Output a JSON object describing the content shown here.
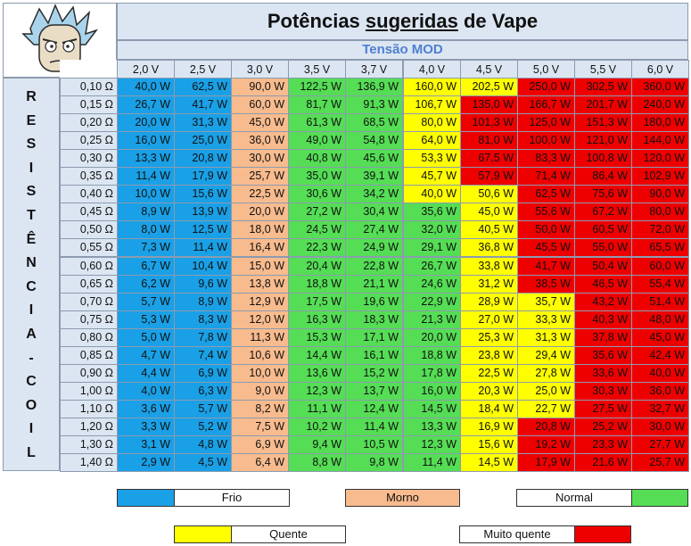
{
  "title": {
    "pre": "Potências ",
    "underlined": "sugeridas",
    "post": " de Vape"
  },
  "subtitle": "Tensão MOD",
  "side_label": [
    "R",
    "E",
    "S",
    "I",
    "S",
    "T",
    "Ê",
    "N",
    "C",
    "I",
    "A",
    "-",
    "C",
    "O",
    "I",
    "L"
  ],
  "colors": {
    "frio": "#1aa0e6",
    "morno": "#f8bb8e",
    "normal": "#55dd55",
    "quente": "#ffff00",
    "muito_quente": "#ee0000",
    "header": "#dce6f2"
  },
  "chart_data": {
    "type": "table",
    "title": "Potências sugeridas de Vape",
    "column_header": "Tensão MOD",
    "row_header": "RESISTÊNCIA-COIL",
    "columns": [
      "2,0 V",
      "2,5 V",
      "3,0 V",
      "3,5 V",
      "3,7 V",
      "4,0 V",
      "4,5 V",
      "5,0 V",
      "5,5 V",
      "6,0 V"
    ],
    "rows": [
      {
        "r": "0,10 Ω",
        "v": [
          "40,0 W",
          "62,5 W",
          "90,0 W",
          "122,5 W",
          "136,9 W",
          "160,0 W",
          "202,5 W",
          "250,0 W",
          "302,5 W",
          "360,0 W"
        ],
        "c": [
          "f",
          "f",
          "m",
          "n",
          "n",
          "q",
          "q",
          "h",
          "h",
          "h"
        ]
      },
      {
        "r": "0,15 Ω",
        "v": [
          "26,7 W",
          "41,7 W",
          "60,0 W",
          "81,7 W",
          "91,3 W",
          "106,7 W",
          "135,0 W",
          "166,7 W",
          "201,7 W",
          "240,0 W"
        ],
        "c": [
          "f",
          "f",
          "m",
          "n",
          "n",
          "q",
          "h",
          "h",
          "h",
          "h"
        ]
      },
      {
        "r": "0,20 Ω",
        "v": [
          "20,0 W",
          "31,3 W",
          "45,0 W",
          "61,3 W",
          "68,5 W",
          "80,0 W",
          "101,3 W",
          "125,0 W",
          "151,3 W",
          "180,0 W"
        ],
        "c": [
          "f",
          "f",
          "m",
          "n",
          "n",
          "q",
          "h",
          "h",
          "h",
          "h"
        ]
      },
      {
        "r": "0,25 Ω",
        "v": [
          "16,0 W",
          "25,0 W",
          "36,0 W",
          "49,0 W",
          "54,8 W",
          "64,0 W",
          "81,0 W",
          "100,0 W",
          "121,0 W",
          "144,0 W"
        ],
        "c": [
          "f",
          "f",
          "m",
          "n",
          "n",
          "q",
          "h",
          "h",
          "h",
          "h"
        ]
      },
      {
        "r": "0,30 Ω",
        "v": [
          "13,3 W",
          "20,8 W",
          "30,0 W",
          "40,8 W",
          "45,6 W",
          "53,3 W",
          "67,5 W",
          "83,3 W",
          "100,8 W",
          "120,0 W"
        ],
        "c": [
          "f",
          "f",
          "m",
          "n",
          "n",
          "q",
          "h",
          "h",
          "h",
          "h"
        ]
      },
      {
        "r": "0,35 Ω",
        "v": [
          "11,4 W",
          "17,9 W",
          "25,7 W",
          "35,0 W",
          "39,1 W",
          "45,7 W",
          "57,9 W",
          "71,4 W",
          "86,4 W",
          "102,9 W"
        ],
        "c": [
          "f",
          "f",
          "m",
          "n",
          "n",
          "q",
          "h",
          "h",
          "h",
          "h"
        ]
      },
      {
        "r": "0,40 Ω",
        "v": [
          "10,0 W",
          "15,6 W",
          "22,5 W",
          "30,6 W",
          "34,2 W",
          "40,0 W",
          "50,6 W",
          "62,5 W",
          "75,6 W",
          "90,0 W"
        ],
        "c": [
          "f",
          "f",
          "m",
          "n",
          "n",
          "q",
          "q",
          "h",
          "h",
          "h"
        ]
      },
      {
        "r": "0,45 Ω",
        "v": [
          "8,9 W",
          "13,9 W",
          "20,0 W",
          "27,2 W",
          "30,4 W",
          "35,6 W",
          "45,0 W",
          "55,6 W",
          "67,2 W",
          "80,0 W"
        ],
        "c": [
          "f",
          "f",
          "m",
          "n",
          "n",
          "n",
          "q",
          "h",
          "h",
          "h"
        ]
      },
      {
        "r": "0,50 Ω",
        "v": [
          "8,0 W",
          "12,5 W",
          "18,0 W",
          "24,5 W",
          "27,4 W",
          "32,0 W",
          "40,5 W",
          "50,0 W",
          "60,5 W",
          "72,0 W"
        ],
        "c": [
          "f",
          "f",
          "m",
          "n",
          "n",
          "n",
          "q",
          "h",
          "h",
          "h"
        ]
      },
      {
        "r": "0,55 Ω",
        "v": [
          "7,3 W",
          "11,4 W",
          "16,4 W",
          "22,3 W",
          "24,9 W",
          "29,1 W",
          "36,8 W",
          "45,5 W",
          "55,0 W",
          "65,5 W"
        ],
        "c": [
          "f",
          "f",
          "m",
          "n",
          "n",
          "n",
          "q",
          "h",
          "h",
          "h"
        ]
      },
      {
        "r": "0,60 Ω",
        "v": [
          "6,7 W",
          "10,4 W",
          "15,0 W",
          "20,4 W",
          "22,8 W",
          "26,7 W",
          "33,8 W",
          "41,7 W",
          "50,4 W",
          "60,0 W"
        ],
        "c": [
          "f",
          "f",
          "m",
          "n",
          "n",
          "n",
          "q",
          "h",
          "h",
          "h"
        ]
      },
      {
        "r": "0,65 Ω",
        "v": [
          "6,2 W",
          "9,6 W",
          "13,8 W",
          "18,8 W",
          "21,1 W",
          "24,6 W",
          "31,2 W",
          "38,5 W",
          "46,5 W",
          "55,4 W"
        ],
        "c": [
          "f",
          "f",
          "m",
          "n",
          "n",
          "n",
          "q",
          "h",
          "h",
          "h"
        ]
      },
      {
        "r": "0,70 Ω",
        "v": [
          "5,7 W",
          "8,9 W",
          "12,9 W",
          "17,5 W",
          "19,6 W",
          "22,9 W",
          "28,9 W",
          "35,7 W",
          "43,2 W",
          "51,4 W"
        ],
        "c": [
          "f",
          "f",
          "m",
          "n",
          "n",
          "n",
          "q",
          "q",
          "h",
          "h"
        ]
      },
      {
        "r": "0,75 Ω",
        "v": [
          "5,3 W",
          "8,3 W",
          "12,0 W",
          "16,3 W",
          "18,3 W",
          "21,3 W",
          "27,0 W",
          "33,3 W",
          "40,3 W",
          "48,0 W"
        ],
        "c": [
          "f",
          "f",
          "m",
          "n",
          "n",
          "n",
          "q",
          "q",
          "h",
          "h"
        ]
      },
      {
        "r": "0,80 Ω",
        "v": [
          "5,0 W",
          "7,8 W",
          "11,3 W",
          "15,3 W",
          "17,1 W",
          "20,0 W",
          "25,3 W",
          "31,3 W",
          "37,8 W",
          "45,0 W"
        ],
        "c": [
          "f",
          "f",
          "m",
          "n",
          "n",
          "n",
          "q",
          "q",
          "h",
          "h"
        ]
      },
      {
        "r": "0,85 Ω",
        "v": [
          "4,7 W",
          "7,4 W",
          "10,6 W",
          "14,4 W",
          "16,1 W",
          "18,8 W",
          "23,8 W",
          "29,4 W",
          "35,6 W",
          "42,4 W"
        ],
        "c": [
          "f",
          "f",
          "m",
          "n",
          "n",
          "n",
          "q",
          "q",
          "h",
          "h"
        ]
      },
      {
        "r": "0,90 Ω",
        "v": [
          "4,4 W",
          "6,9 W",
          "10,0 W",
          "13,6 W",
          "15,2 W",
          "17,8 W",
          "22,5 W",
          "27,8 W",
          "33,6 W",
          "40,0 W"
        ],
        "c": [
          "f",
          "f",
          "m",
          "n",
          "n",
          "n",
          "q",
          "q",
          "h",
          "h"
        ]
      },
      {
        "r": "1,00 Ω",
        "v": [
          "4,0 W",
          "6,3 W",
          "9,0 W",
          "12,3 W",
          "13,7 W",
          "16,0 W",
          "20,3 W",
          "25,0 W",
          "30,3 W",
          "36,0 W"
        ],
        "c": [
          "f",
          "f",
          "m",
          "n",
          "n",
          "n",
          "q",
          "q",
          "h",
          "h"
        ]
      },
      {
        "r": "1,10 Ω",
        "v": [
          "3,6 W",
          "5,7 W",
          "8,2 W",
          "11,1 W",
          "12,4 W",
          "14,5 W",
          "18,4 W",
          "22,7 W",
          "27,5 W",
          "32,7 W"
        ],
        "c": [
          "f",
          "f",
          "m",
          "n",
          "n",
          "n",
          "q",
          "q",
          "h",
          "h"
        ]
      },
      {
        "r": "1,20 Ω",
        "v": [
          "3,3 W",
          "5,2 W",
          "7,5 W",
          "10,2 W",
          "11,4 W",
          "13,3 W",
          "16,9 W",
          "20,8 W",
          "25,2 W",
          "30,0 W"
        ],
        "c": [
          "f",
          "f",
          "m",
          "n",
          "n",
          "n",
          "q",
          "h",
          "h",
          "h"
        ]
      },
      {
        "r": "1,30 Ω",
        "v": [
          "3,1 W",
          "4,8 W",
          "6,9 W",
          "9,4 W",
          "10,5 W",
          "12,3 W",
          "15,6 W",
          "19,2 W",
          "23,3 W",
          "27,7 W"
        ],
        "c": [
          "f",
          "f",
          "m",
          "n",
          "n",
          "n",
          "q",
          "h",
          "h",
          "h"
        ]
      },
      {
        "r": "1,40 Ω",
        "v": [
          "2,9 W",
          "4,5 W",
          "6,4 W",
          "8,8 W",
          "9,8 W",
          "11,4 W",
          "14,5 W",
          "17,9 W",
          "21,6 W",
          "25,7 W"
        ],
        "c": [
          "f",
          "f",
          "m",
          "n",
          "n",
          "n",
          "q",
          "h",
          "h",
          "h"
        ]
      }
    ]
  },
  "legend": [
    {
      "key": "f",
      "label": "Frio"
    },
    {
      "key": "m",
      "label": "Morno"
    },
    {
      "key": "n",
      "label": "Normal"
    },
    {
      "key": "q",
      "label": "Quente"
    },
    {
      "key": "h",
      "label": "Muito quente"
    }
  ]
}
